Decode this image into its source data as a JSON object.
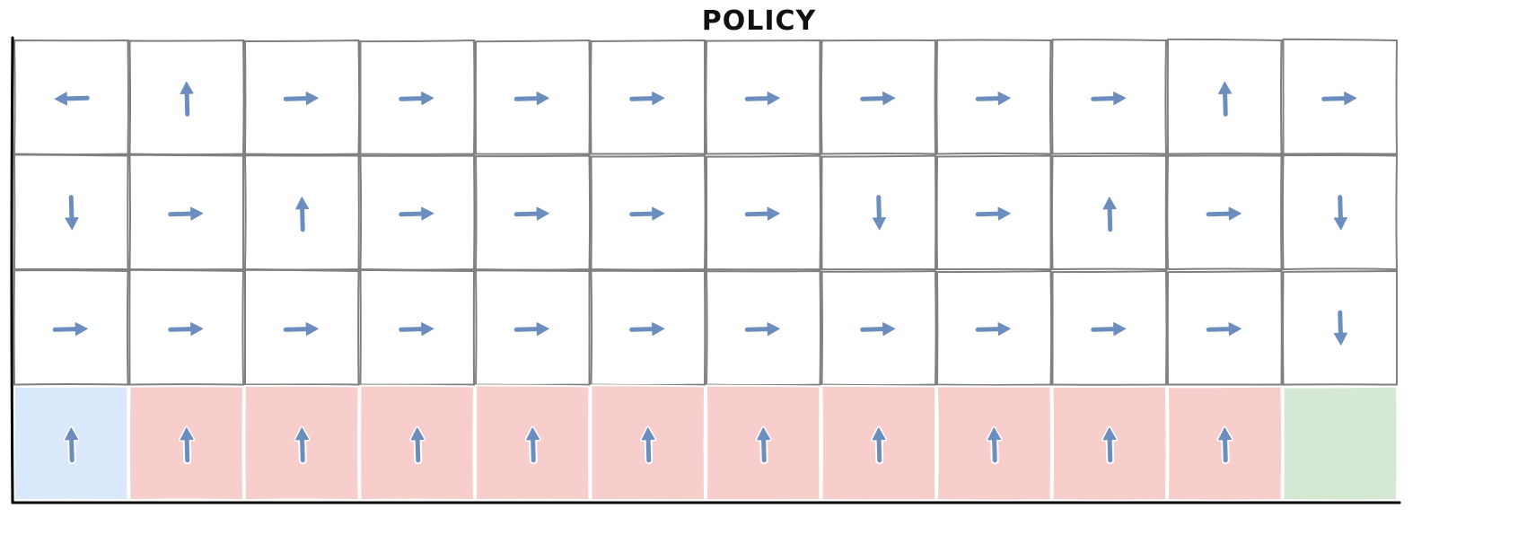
{
  "title": "POLICY",
  "grid": {
    "rows": 4,
    "cols": 12,
    "policy": [
      [
        "left",
        "up",
        "right",
        "right",
        "right",
        "right",
        "right",
        "right",
        "right",
        "right",
        "up",
        "right"
      ],
      [
        "down",
        "right",
        "up",
        "right",
        "right",
        "right",
        "right",
        "down",
        "right",
        "up",
        "right",
        "down"
      ],
      [
        "right",
        "right",
        "right",
        "right",
        "right",
        "right",
        "right",
        "right",
        "right",
        "right",
        "right",
        "down"
      ],
      [
        "up",
        "up",
        "up",
        "up",
        "up",
        "up",
        "up",
        "up",
        "up",
        "up",
        "up",
        "none"
      ]
    ],
    "cell_types": [
      [
        "normal",
        "normal",
        "normal",
        "normal",
        "normal",
        "normal",
        "normal",
        "normal",
        "normal",
        "normal",
        "normal",
        "normal"
      ],
      [
        "normal",
        "normal",
        "normal",
        "normal",
        "normal",
        "normal",
        "normal",
        "normal",
        "normal",
        "normal",
        "normal",
        "normal"
      ],
      [
        "normal",
        "normal",
        "normal",
        "normal",
        "normal",
        "normal",
        "normal",
        "normal",
        "normal",
        "normal",
        "normal",
        "normal"
      ],
      [
        "start",
        "cliff",
        "cliff",
        "cliff",
        "cliff",
        "cliff",
        "cliff",
        "cliff",
        "cliff",
        "cliff",
        "cliff",
        "goal"
      ]
    ]
  },
  "colors": {
    "start": "#dae8fc",
    "cliff": "#f8cecc",
    "goal": "#d5e8d4",
    "normal": "#ffffff",
    "arrow": "#6c8ebf",
    "gridline": "#808080",
    "axis": "#000000"
  },
  "icons": {
    "up": "arrow-up-icon",
    "down": "arrow-down-icon",
    "left": "arrow-left-icon",
    "right": "arrow-right-icon"
  }
}
